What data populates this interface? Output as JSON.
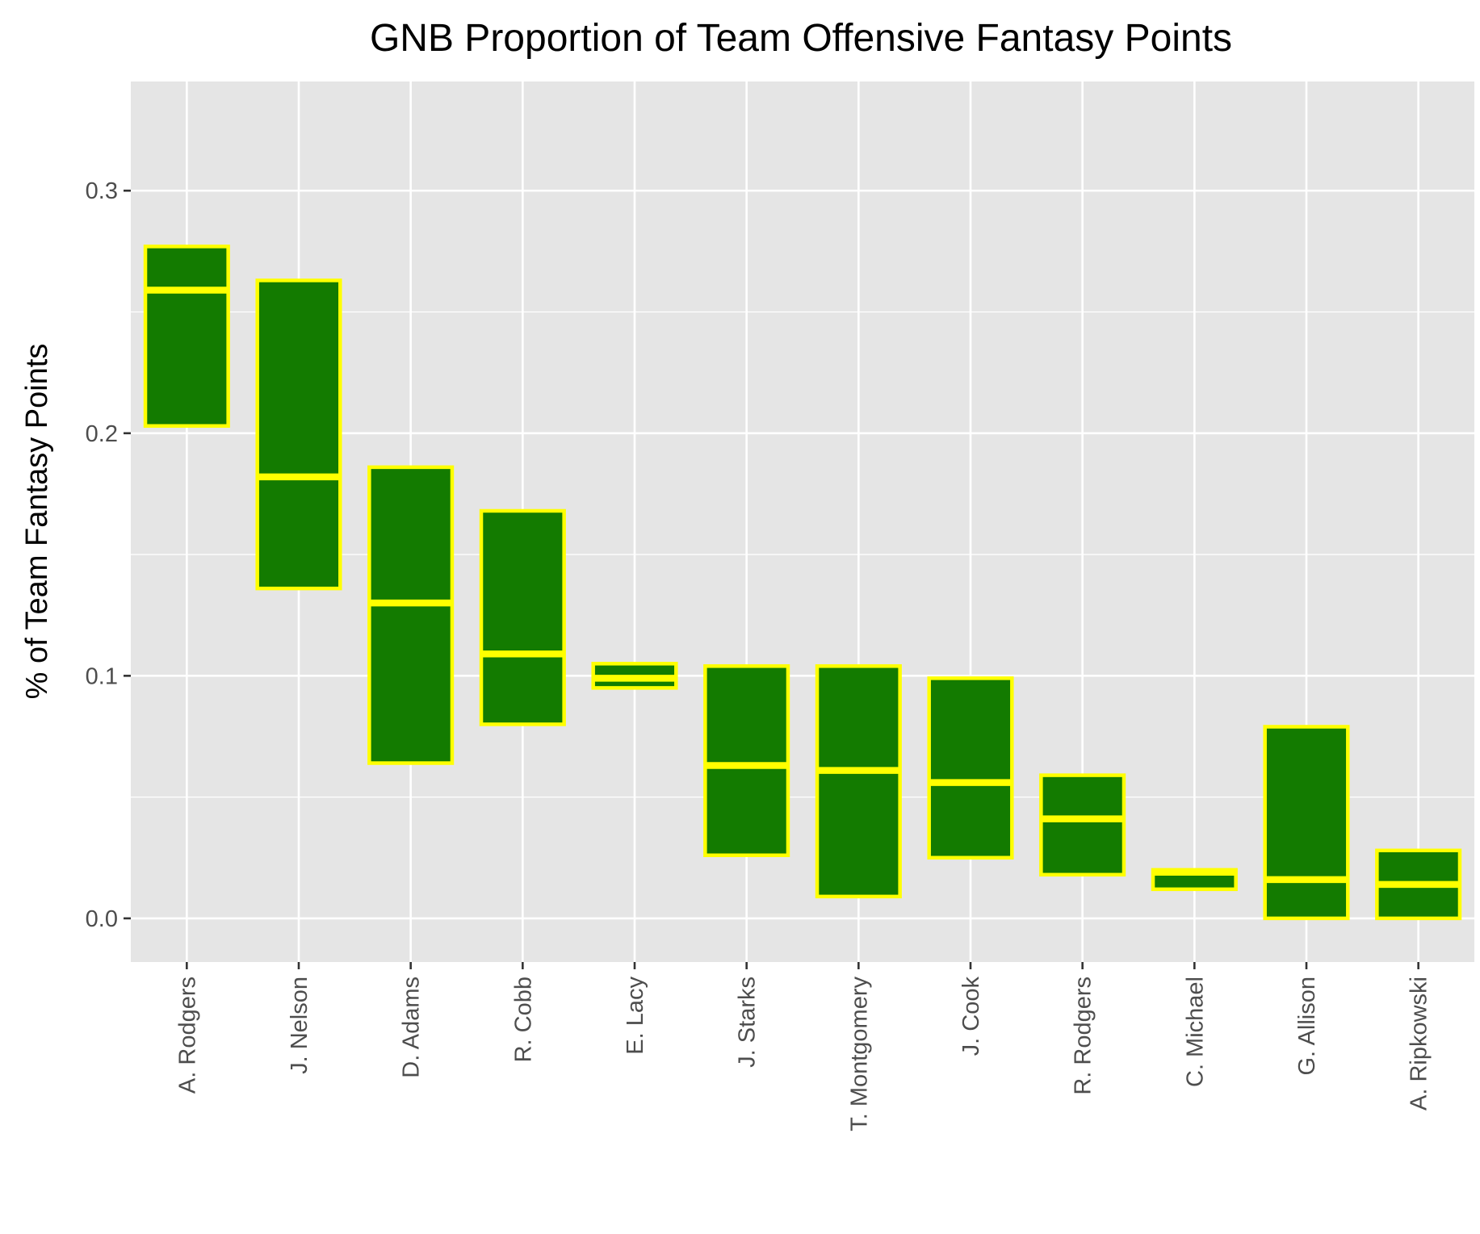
{
  "chart_data": {
    "type": "boxplot",
    "title": "GNB Proportion of Team Offensive Fantasy Points",
    "xlabel": "",
    "ylabel": "% of Team Fantasy Points",
    "categories": [
      "A. Rodgers",
      "J. Nelson",
      "D. Adams",
      "R. Cobb",
      "E. Lacy",
      "J. Starks",
      "T. Montgomery",
      "J. Cook",
      "R. Rodgers",
      "C. Michael",
      "G. Allison",
      "A. Ripkowski"
    ],
    "boxes": [
      {
        "lower": 0.203,
        "median": 0.259,
        "upper": 0.277
      },
      {
        "lower": 0.136,
        "median": 0.182,
        "upper": 0.263
      },
      {
        "lower": 0.064,
        "median": 0.13,
        "upper": 0.186
      },
      {
        "lower": 0.08,
        "median": 0.109,
        "upper": 0.168
      },
      {
        "lower": 0.095,
        "median": 0.099,
        "upper": 0.105
      },
      {
        "lower": 0.026,
        "median": 0.063,
        "upper": 0.104
      },
      {
        "lower": 0.009,
        "median": 0.061,
        "upper": 0.104
      },
      {
        "lower": 0.025,
        "median": 0.056,
        "upper": 0.099
      },
      {
        "lower": 0.018,
        "median": 0.041,
        "upper": 0.059
      },
      {
        "lower": 0.012,
        "median": 0.019,
        "upper": 0.02
      },
      {
        "lower": 0.0,
        "median": 0.016,
        "upper": 0.079
      },
      {
        "lower": 0.0,
        "median": 0.014,
        "upper": 0.028
      }
    ],
    "yticks": [
      0.0,
      0.1,
      0.2,
      0.3
    ],
    "ytick_labels": [
      "0.0",
      "0.1",
      "0.2",
      "0.3"
    ],
    "ylim": [
      -0.018,
      0.345
    ],
    "grid": true,
    "legend": "none",
    "colors": {
      "panel_background": "#e5e5e5",
      "grid": "#ffffff",
      "box_fill": "#137b00",
      "box_stroke": "#ffff00",
      "tick": "#333333"
    }
  }
}
